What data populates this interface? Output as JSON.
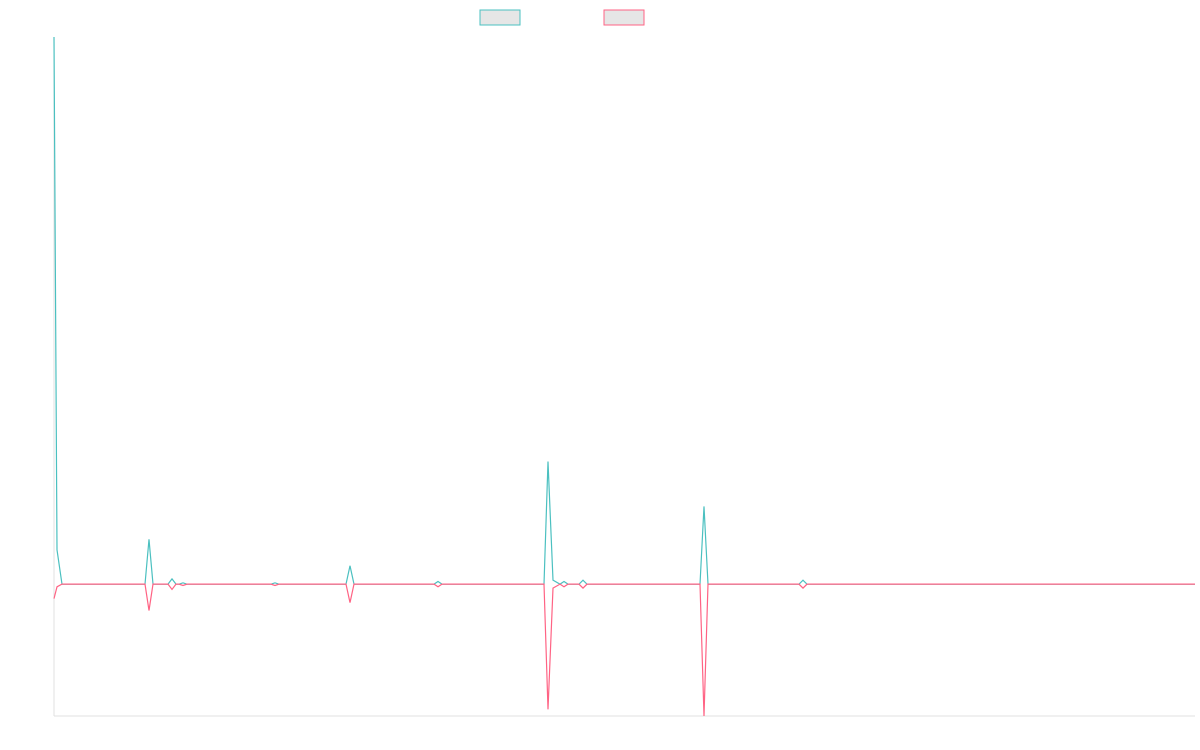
{
  "chart_data": {
    "type": "line",
    "x": [
      0,
      3,
      8,
      91,
      95,
      99,
      114,
      118,
      122,
      125,
      129,
      133,
      217,
      221,
      225,
      292,
      296,
      300,
      380,
      384,
      388,
      490,
      494,
      499,
      506,
      510,
      514,
      525,
      529,
      533,
      646,
      650,
      654,
      745,
      749,
      753,
      1141
    ],
    "series": [
      {
        "color": "#4bc0c0",
        "values": [
          415,
          26,
          0,
          0,
          34,
          0,
          0,
          4,
          0,
          0,
          1,
          0,
          0,
          1,
          0,
          0,
          14,
          0,
          0,
          2,
          0,
          0,
          93,
          3,
          0,
          2,
          0,
          0,
          3,
          0,
          0,
          59,
          0,
          0,
          3,
          0,
          0
        ]
      },
      {
        "color": "#ff6384",
        "values": [
          -11,
          -2,
          0,
          0,
          -20,
          0,
          0,
          -4,
          0,
          0,
          -1,
          0,
          0,
          -1,
          0,
          0,
          -14,
          0,
          0,
          -2,
          0,
          0,
          -95,
          -3,
          0,
          -2,
          0,
          0,
          -3,
          0,
          0,
          -100,
          0,
          0,
          -3,
          0,
          0
        ]
      }
    ],
    "xlim": [
      0,
      1141
    ],
    "ylim": [
      -100,
      415
    ],
    "grid": false,
    "legend": "top"
  }
}
